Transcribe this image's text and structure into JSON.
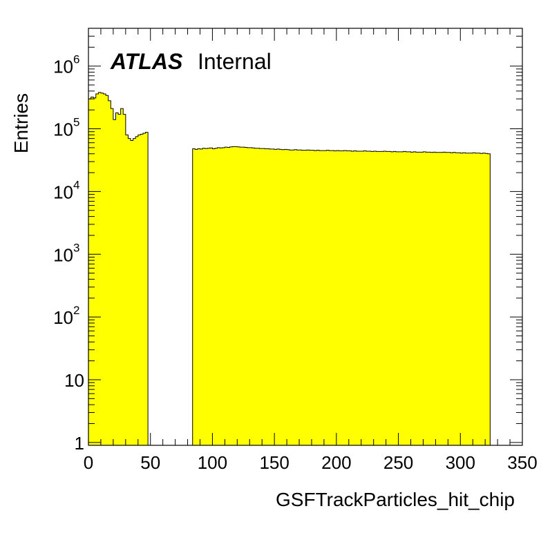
{
  "chart_data": {
    "type": "histogram",
    "title": "",
    "xlabel": "GSFTrackParticles_hit_chip",
    "ylabel": "Entries",
    "xlim": [
      0,
      350
    ],
    "ylim": [
      0.9,
      4000000
    ],
    "yscale": "log",
    "grid": false,
    "fill_color": "#ffff00",
    "line_color": "#000000",
    "x_ticks": [
      0,
      50,
      100,
      150,
      200,
      250,
      300,
      350
    ],
    "x_tick_labels": [
      "0",
      "50",
      "100",
      "150",
      "200",
      "250",
      "300",
      "350"
    ],
    "y_ticks": [
      {
        "value": 1,
        "base": "1",
        "exp": ""
      },
      {
        "value": 10,
        "base": "10",
        "exp": ""
      },
      {
        "value": 100,
        "base": "10",
        "exp": "2"
      },
      {
        "value": 1000,
        "base": "10",
        "exp": "3"
      },
      {
        "value": 10000,
        "base": "10",
        "exp": "4"
      },
      {
        "value": 100000,
        "base": "10",
        "exp": "5"
      },
      {
        "value": 1000000,
        "base": "10",
        "exp": "6"
      }
    ],
    "annotation": {
      "atlas": "ATLAS",
      "status": "Internal"
    },
    "bin_width": 2,
    "series": [
      {
        "x_start": 0,
        "values": [
          300000,
          320000,
          310000,
          360000,
          380000,
          370000,
          360000,
          340000,
          280000,
          210000,
          140000,
          180000,
          170000,
          210000,
          170000,
          80000,
          70000,
          65000,
          70000,
          75000,
          80000,
          82000,
          85000,
          88000
        ]
      },
      {
        "x_start": 84,
        "values": [
          48000,
          47000,
          48000,
          47500,
          49000,
          48500,
          49000,
          49500,
          48000,
          49000,
          50000,
          49500,
          50000,
          51000,
          50500,
          51500,
          52000,
          52000,
          51500,
          51000,
          51000,
          50500,
          50000,
          50000,
          49500,
          49000,
          49000,
          48500,
          48500,
          48000,
          48000,
          47500,
          47500,
          47000,
          47500,
          47000,
          46500,
          47000,
          46500,
          46000,
          46000,
          46500,
          46000,
          46000,
          45500,
          45500,
          46000,
          45500,
          45500,
          45000,
          45500,
          45000,
          45000,
          45000,
          45500,
          45000,
          45000,
          44500,
          45000,
          44500,
          44500,
          45000,
          44500,
          44500,
          44000,
          44500,
          44000,
          44000,
          44000,
          44500,
          44000,
          44000,
          43500,
          44000,
          43500,
          43500,
          43500,
          44000,
          43500,
          43500,
          43000,
          43500,
          43000,
          43000,
          43000,
          43500,
          43000,
          43000,
          42500,
          43000,
          42500,
          42500,
          42500,
          43000,
          42500,
          42500,
          42000,
          42500,
          42000,
          42000,
          42000,
          42500,
          42000,
          42000,
          41500,
          42000,
          41500,
          41500,
          41000,
          41500,
          41000,
          41000,
          41000,
          41500,
          41000,
          41000,
          40500,
          41000,
          40500,
          40000
        ]
      }
    ]
  }
}
